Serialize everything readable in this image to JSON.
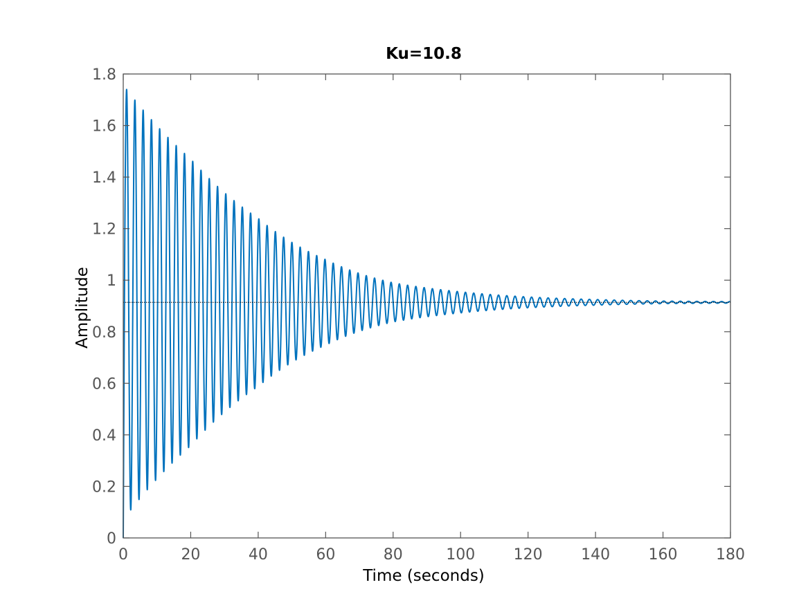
{
  "chart_data": {
    "type": "line",
    "title": "Ku=10.8",
    "xlabel": "Time (seconds)",
    "ylabel": "Amplitude",
    "xlim": [
      0,
      180
    ],
    "ylim": [
      0,
      1.8
    ],
    "x_ticks": [
      "0",
      "20",
      "40",
      "60",
      "80",
      "100",
      "120",
      "140",
      "160",
      "180"
    ],
    "y_ticks": [
      "0",
      "0.2",
      "0.4",
      "0.6",
      "0.8",
      "1",
      "1.2",
      "1.4",
      "1.6",
      "1.8"
    ],
    "grid": false,
    "legend": "none",
    "series": [
      {
        "color": "#0072BD",
        "steady_state_value": 0.914,
        "start_value": 0,
        "first_peak": {
          "x": 1.0,
          "y": 1.74
        },
        "first_trough": {
          "x": 2.2,
          "y": 0.095
        },
        "oscillation_period_s": 2.45,
        "peaks": [
          {
            "x": 1.0,
            "y": 1.74
          },
          {
            "x": 20,
            "y": 1.47
          },
          {
            "x": 40,
            "y": 1.24
          },
          {
            "x": 60,
            "y": 1.08
          },
          {
            "x": 80,
            "y": 0.99
          },
          {
            "x": 100,
            "y": 0.955
          },
          {
            "x": 120,
            "y": 0.935
          },
          {
            "x": 140,
            "y": 0.925
          },
          {
            "x": 160,
            "y": 0.919
          },
          {
            "x": 180,
            "y": 0.917
          }
        ]
      }
    ],
    "reference_line": {
      "y": 0.914,
      "color": "#000000",
      "style": "dotted"
    }
  }
}
